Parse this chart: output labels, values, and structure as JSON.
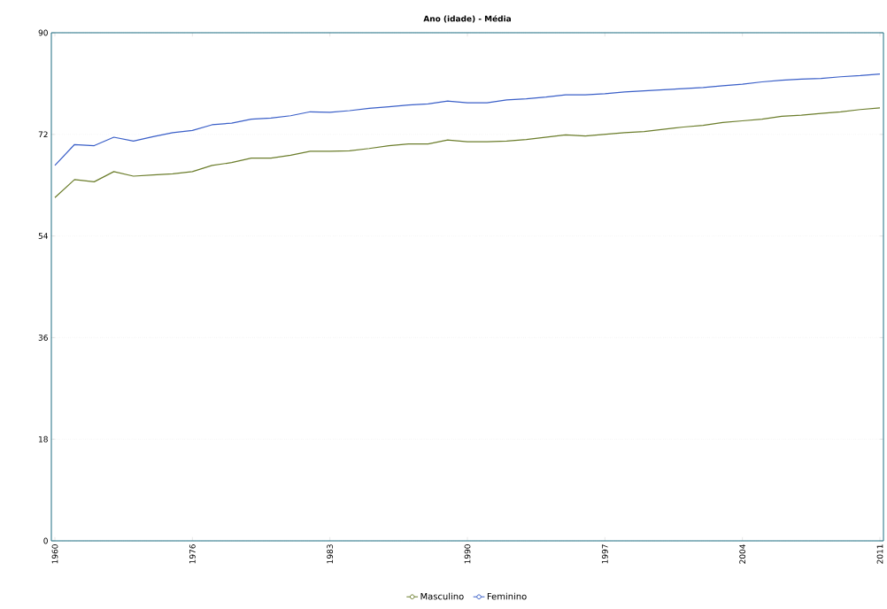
{
  "chart_data": {
    "type": "line",
    "title": "Ano (idade) - Média",
    "categories": [
      "1960",
      null,
      null,
      null,
      null,
      null,
      null,
      "1976",
      null,
      null,
      null,
      null,
      null,
      null,
      "1983",
      null,
      null,
      null,
      null,
      null,
      null,
      "1990",
      null,
      null,
      null,
      null,
      null,
      null,
      "1997",
      null,
      null,
      null,
      null,
      null,
      null,
      "2004",
      null,
      null,
      null,
      null,
      null,
      null,
      "2011"
    ],
    "series": [
      {
        "name": "Masculino",
        "color": "#6b7d2b",
        "values": [
          60.8,
          64.0,
          63.6,
          65.4,
          64.6,
          64.8,
          65.0,
          65.4,
          66.5,
          67.0,
          67.8,
          67.8,
          68.3,
          69.0,
          69.0,
          69.1,
          69.5,
          70.0,
          70.3,
          70.3,
          71.0,
          70.7,
          70.7,
          70.8,
          71.1,
          71.5,
          71.9,
          71.7,
          72.0,
          72.3,
          72.5,
          72.9,
          73.3,
          73.6,
          74.1,
          74.4,
          74.7,
          75.2,
          75.4,
          75.7,
          76.0,
          76.4,
          76.7
        ]
      },
      {
        "name": "Feminino",
        "color": "#3a5fc8",
        "values": [
          66.5,
          70.2,
          70.0,
          71.5,
          70.8,
          71.6,
          72.3,
          72.7,
          73.7,
          74.0,
          74.7,
          74.9,
          75.3,
          76.0,
          75.9,
          76.2,
          76.6,
          76.9,
          77.2,
          77.4,
          77.9,
          77.6,
          77.6,
          78.1,
          78.3,
          78.6,
          79.0,
          79.0,
          79.2,
          79.5,
          79.7,
          79.9,
          80.1,
          80.3,
          80.6,
          80.9,
          81.3,
          81.6,
          81.8,
          81.9,
          82.2,
          82.4,
          82.7
        ]
      }
    ],
    "ylim": [
      0,
      90
    ],
    "yticks": [
      0,
      18,
      36,
      54,
      72,
      90
    ],
    "grid": "y",
    "legend": "bottom"
  }
}
